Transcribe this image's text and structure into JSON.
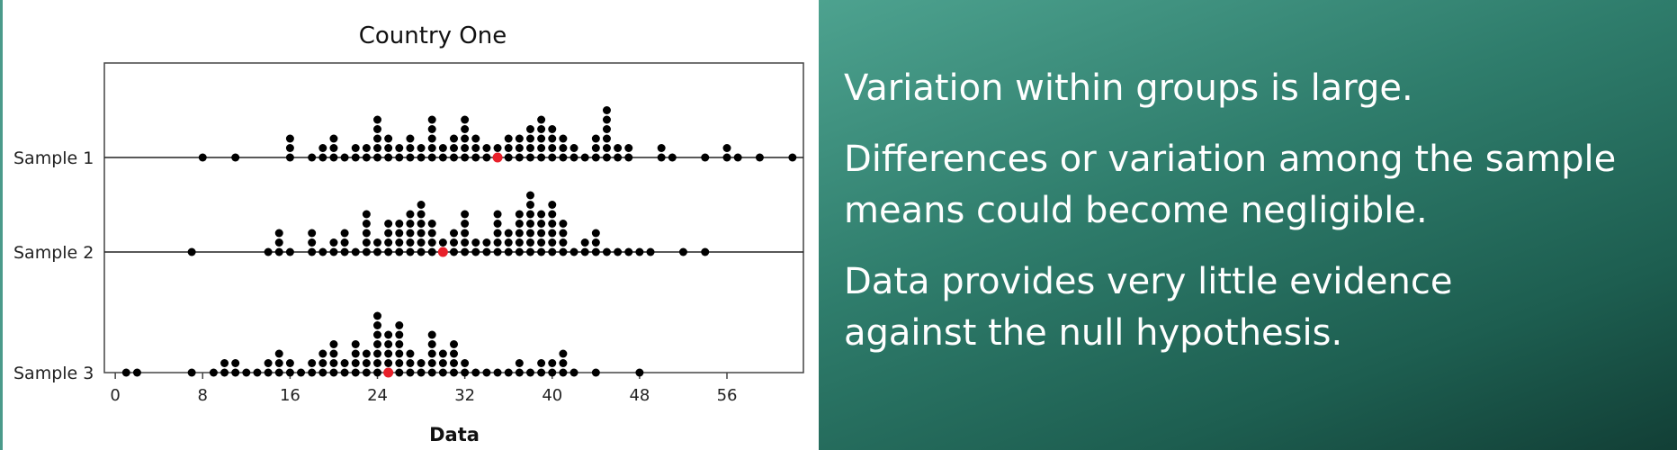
{
  "chart_data": {
    "type": "dotplot",
    "title": "Country One",
    "xlabel": "Data",
    "xlim": [
      -1,
      63
    ],
    "xticks": [
      0,
      8,
      16,
      24,
      32,
      40,
      48,
      56
    ],
    "dot_color": "#000000",
    "mean_color": "#e8202a",
    "series": [
      {
        "name": "Sample 1",
        "mean": 35,
        "stacks": [
          [
            8,
            1
          ],
          [
            11,
            1
          ],
          [
            16,
            3
          ],
          [
            18,
            1
          ],
          [
            19,
            2
          ],
          [
            20,
            3
          ],
          [
            21,
            1
          ],
          [
            22,
            2
          ],
          [
            23,
            2
          ],
          [
            24,
            5
          ],
          [
            25,
            3
          ],
          [
            26,
            2
          ],
          [
            27,
            3
          ],
          [
            28,
            2
          ],
          [
            29,
            5
          ],
          [
            30,
            2
          ],
          [
            31,
            3
          ],
          [
            32,
            5
          ],
          [
            33,
            3
          ],
          [
            34,
            2
          ],
          [
            35,
            2
          ],
          [
            36,
            3
          ],
          [
            37,
            3
          ],
          [
            38,
            4
          ],
          [
            39,
            5
          ],
          [
            40,
            4
          ],
          [
            41,
            3
          ],
          [
            42,
            2
          ],
          [
            43,
            1
          ],
          [
            44,
            3
          ],
          [
            45,
            6
          ],
          [
            46,
            2
          ],
          [
            47,
            2
          ],
          [
            50,
            2
          ],
          [
            51,
            1
          ],
          [
            54,
            1
          ],
          [
            56,
            2
          ],
          [
            57,
            1
          ],
          [
            59,
            1
          ],
          [
            62,
            1
          ]
        ]
      },
      {
        "name": "Sample 2",
        "mean": 30,
        "stacks": [
          [
            7,
            1
          ],
          [
            14,
            1
          ],
          [
            15,
            3
          ],
          [
            16,
            1
          ],
          [
            18,
            3
          ],
          [
            19,
            1
          ],
          [
            20,
            2
          ],
          [
            21,
            3
          ],
          [
            22,
            1
          ],
          [
            23,
            5
          ],
          [
            24,
            2
          ],
          [
            25,
            4
          ],
          [
            26,
            4
          ],
          [
            27,
            5
          ],
          [
            28,
            6
          ],
          [
            29,
            4
          ],
          [
            30,
            2
          ],
          [
            31,
            3
          ],
          [
            32,
            5
          ],
          [
            33,
            2
          ],
          [
            34,
            2
          ],
          [
            35,
            5
          ],
          [
            36,
            3
          ],
          [
            37,
            5
          ],
          [
            38,
            7
          ],
          [
            39,
            5
          ],
          [
            40,
            6
          ],
          [
            41,
            4
          ],
          [
            42,
            1
          ],
          [
            43,
            2
          ],
          [
            44,
            3
          ],
          [
            45,
            1
          ],
          [
            46,
            1
          ],
          [
            47,
            1
          ],
          [
            48,
            1
          ],
          [
            49,
            1
          ],
          [
            52,
            1
          ],
          [
            54,
            1
          ]
        ]
      },
      {
        "name": "Sample 3",
        "mean": 25,
        "stacks": [
          [
            1,
            1
          ],
          [
            2,
            1
          ],
          [
            7,
            1
          ],
          [
            9,
            1
          ],
          [
            10,
            2
          ],
          [
            11,
            2
          ],
          [
            12,
            1
          ],
          [
            13,
            1
          ],
          [
            14,
            2
          ],
          [
            15,
            3
          ],
          [
            16,
            2
          ],
          [
            17,
            1
          ],
          [
            18,
            2
          ],
          [
            19,
            3
          ],
          [
            20,
            4
          ],
          [
            21,
            2
          ],
          [
            22,
            4
          ],
          [
            23,
            3
          ],
          [
            24,
            7
          ],
          [
            25,
            5
          ],
          [
            26,
            6
          ],
          [
            27,
            3
          ],
          [
            28,
            2
          ],
          [
            29,
            5
          ],
          [
            30,
            3
          ],
          [
            31,
            4
          ],
          [
            32,
            2
          ],
          [
            33,
            1
          ],
          [
            34,
            1
          ],
          [
            35,
            1
          ],
          [
            36,
            1
          ],
          [
            37,
            2
          ],
          [
            38,
            1
          ],
          [
            39,
            2
          ],
          [
            40,
            2
          ],
          [
            41,
            3
          ],
          [
            42,
            1
          ],
          [
            44,
            1
          ],
          [
            48,
            1
          ]
        ]
      }
    ]
  },
  "text_panel": {
    "bullets": [
      [
        "Variation within groups is large."
      ],
      [
        "Differences or variation among the sample",
        "means could become negligible."
      ],
      [
        "Data provides very little evidence",
        "against the null hypothesis."
      ]
    ]
  }
}
